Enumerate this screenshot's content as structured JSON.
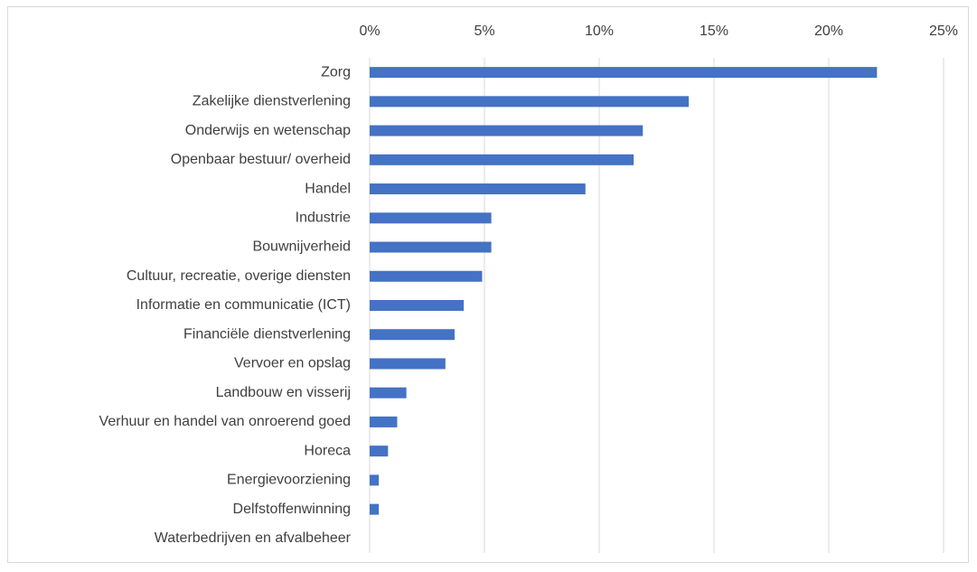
{
  "chart_data": {
    "type": "bar",
    "categories": [
      "Zorg",
      "Zakelijke dienstverlening",
      "Onderwijs en wetenschap",
      "Openbaar bestuur/ overheid",
      "Handel",
      "Industrie",
      "Bouwnijverheid",
      "Cultuur, recreatie, overige diensten",
      "Informatie en communicatie (ICT)",
      "Financiële dienstverlening",
      "Vervoer en opslag",
      "Landbouw en visserij",
      "Verhuur en handel van onroerend goed",
      "Horeca",
      "Energievoorziening",
      "Delfstoffenwinning",
      "Waterbedrijven en afvalbeheer"
    ],
    "values": [
      22.1,
      13.9,
      11.9,
      11.5,
      9.4,
      5.3,
      5.3,
      4.9,
      4.1,
      3.7,
      3.3,
      1.6,
      1.2,
      0.8,
      0.4,
      0.4,
      0
    ],
    "color": "#4472c4",
    "xlim": [
      0,
      25
    ],
    "xticks": [
      {
        "value": 0,
        "label": "0%"
      },
      {
        "value": 5,
        "label": "5%"
      },
      {
        "value": 10,
        "label": "10%"
      },
      {
        "value": 15,
        "label": "15%"
      },
      {
        "value": 20,
        "label": "20%"
      },
      {
        "value": 25,
        "label": "25%"
      }
    ],
    "grid": true
  }
}
